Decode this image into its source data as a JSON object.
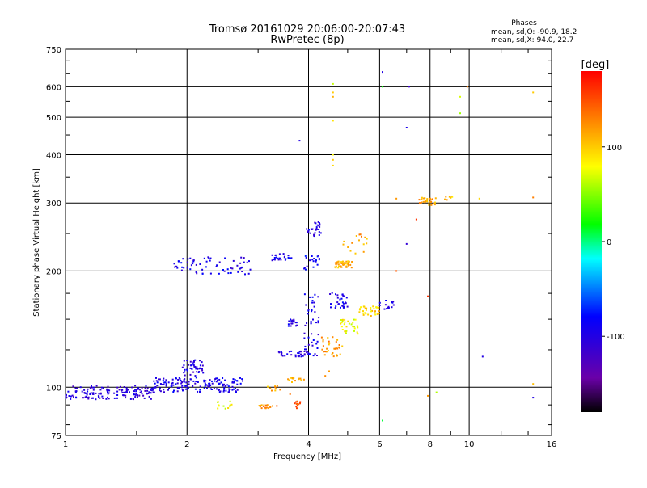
{
  "header": {
    "title_line1": "Tromsø 20161029 20:06:00-20:07:43",
    "title_line2": "RwPretec (8p)",
    "stats_heading": "Phases",
    "stats_o": "mean, sd,O: -90.9, 18.2",
    "stats_x": "mean, sd,X:  94.0, 22.7"
  },
  "colorbar": {
    "unit": "[deg]",
    "ticks": [
      {
        "value": 100,
        "label": "100"
      },
      {
        "value": 0,
        "label": "0"
      },
      {
        "value": -100,
        "label": "-100"
      }
    ],
    "range": [
      -180,
      180
    ],
    "palette": "rainbow"
  },
  "chart_data": {
    "type": "scatter",
    "title": "Tromsø 20161029 20:06:00-20:07:43",
    "subtitle": "RwPretec (8p)",
    "xlabel": "Frequency [MHz]",
    "ylabel": "Stationary phase Virtual Height [km]",
    "xscale": "log",
    "yscale": "log",
    "xlim": [
      1,
      16
    ],
    "ylim": [
      75,
      750
    ],
    "xticks": [
      1,
      2,
      4,
      6,
      8,
      10,
      16
    ],
    "xtick_labels": [
      "1",
      "2",
      "4",
      "6",
      "8",
      "10",
      "16"
    ],
    "yticks": [
      75,
      100,
      200,
      300,
      400,
      500,
      600,
      750
    ],
    "ytick_labels": [
      "75",
      "100",
      "200",
      "300",
      "400",
      "500",
      "600",
      "750"
    ],
    "grid": true,
    "color_encodes": "phase [deg]",
    "clusters": [
      {
        "x_range": [
          1.0,
          1.65
        ],
        "y_range": [
          93,
          101
        ],
        "phase": -105,
        "n": 150
      },
      {
        "x_range": [
          1.65,
          2.75
        ],
        "y_range": [
          97,
          106
        ],
        "phase": -95,
        "n": 160
      },
      {
        "x_range": [
          1.95,
          2.2
        ],
        "y_range": [
          107,
          118
        ],
        "phase": -100,
        "n": 45
      },
      {
        "x_range": [
          1.85,
          2.05
        ],
        "y_range": [
          196,
          218
        ],
        "phase": -95,
        "n": 18
      },
      {
        "x_range": [
          2.05,
          2.9
        ],
        "y_range": [
          196,
          218
        ],
        "phase": -95,
        "n": 50
      },
      {
        "x_range": [
          2.35,
          2.6
        ],
        "y_range": [
          88,
          92
        ],
        "phase": 75,
        "n": 12
      },
      {
        "x_range": [
          3.0,
          3.35
        ],
        "y_range": [
          88,
          90
        ],
        "phase": 125,
        "n": 18
      },
      {
        "x_range": [
          3.1,
          3.4
        ],
        "y_range": [
          98,
          101
        ],
        "phase": 115,
        "n": 10
      },
      {
        "x_range": [
          3.55,
          3.9
        ],
        "y_range": [
          103,
          106
        ],
        "phase": 110,
        "n": 14
      },
      {
        "x_range": [
          3.65,
          3.85
        ],
        "y_range": [
          88,
          92
        ],
        "phase": 145,
        "n": 12
      },
      {
        "x_range": [
          3.25,
          3.65
        ],
        "y_range": [
          213,
          222
        ],
        "phase": -95,
        "n": 25
      },
      {
        "x_range": [
          3.35,
          4.0
        ],
        "y_range": [
          120,
          124
        ],
        "phase": -100,
        "n": 35
      },
      {
        "x_range": [
          3.55,
          3.75
        ],
        "y_range": [
          144,
          150
        ],
        "phase": -100,
        "n": 18
      },
      {
        "x_range": [
          3.9,
          4.25
        ],
        "y_range": [
          120,
          175
        ],
        "phase": -95,
        "n": 45
      },
      {
        "x_range": [
          3.95,
          4.3
        ],
        "y_range": [
          246,
          268
        ],
        "phase": -100,
        "n": 30
      },
      {
        "x_range": [
          3.9,
          4.3
        ],
        "y_range": [
          200,
          222
        ],
        "phase": -90,
        "n": 20
      },
      {
        "x_range": [
          4.3,
          4.85
        ],
        "y_range": [
          120,
          135
        ],
        "phase": 120,
        "n": 35
      },
      {
        "x_range": [
          4.65,
          5.15
        ],
        "y_range": [
          204,
          212
        ],
        "phase": 110,
        "n": 45
      },
      {
        "x_range": [
          4.5,
          5.0
        ],
        "y_range": [
          160,
          176
        ],
        "phase": -95,
        "n": 30
      },
      {
        "x_range": [
          4.8,
          5.3
        ],
        "y_range": [
          136,
          150
        ],
        "phase": 80,
        "n": 30
      },
      {
        "x_range": [
          5.3,
          6.0
        ],
        "y_range": [
          153,
          162
        ],
        "phase": 95,
        "n": 35
      },
      {
        "x_range": [
          5.95,
          6.55
        ],
        "y_range": [
          155,
          168
        ],
        "phase": -95,
        "n": 14
      },
      {
        "x_range": [
          4.8,
          5.6
        ],
        "y_range": [
          220,
          250
        ],
        "phase": 115,
        "n": 16
      },
      {
        "x_range": [
          7.5,
          8.3
        ],
        "y_range": [
          296,
          310
        ],
        "phase": 115,
        "n": 30
      },
      {
        "x_range": [
          8.7,
          9.1
        ],
        "y_range": [
          305,
          312
        ],
        "phase": 105,
        "n": 8
      }
    ],
    "points": [
      {
        "x": 4.6,
        "y": 610,
        "phase": 65
      },
      {
        "x": 4.6,
        "y": 580,
        "phase": 100
      },
      {
        "x": 4.6,
        "y": 565,
        "phase": 110
      },
      {
        "x": 4.6,
        "y": 490,
        "phase": 90
      },
      {
        "x": 4.6,
        "y": 400,
        "phase": 80
      },
      {
        "x": 4.6,
        "y": 388,
        "phase": 100
      },
      {
        "x": 4.6,
        "y": 375,
        "phase": 95
      },
      {
        "x": 3.8,
        "y": 435,
        "phase": -100
      },
      {
        "x": 6.1,
        "y": 655,
        "phase": -100
      },
      {
        "x": 6.1,
        "y": 600,
        "phase": 20
      },
      {
        "x": 7.1,
        "y": 600,
        "phase": -115
      },
      {
        "x": 7.0,
        "y": 470,
        "phase": -95
      },
      {
        "x": 9.5,
        "y": 565,
        "phase": 70
      },
      {
        "x": 9.5,
        "y": 512,
        "phase": 55
      },
      {
        "x": 9.9,
        "y": 600,
        "phase": 130
      },
      {
        "x": 14.4,
        "y": 580,
        "phase": 100
      },
      {
        "x": 14.4,
        "y": 310,
        "phase": 130
      },
      {
        "x": 10.6,
        "y": 308,
        "phase": 95
      },
      {
        "x": 6.6,
        "y": 308,
        "phase": 120
      },
      {
        "x": 7.4,
        "y": 272,
        "phase": 160
      },
      {
        "x": 7.0,
        "y": 235,
        "phase": -110
      },
      {
        "x": 6.6,
        "y": 200,
        "phase": 145
      },
      {
        "x": 7.9,
        "y": 172,
        "phase": 160
      },
      {
        "x": 7.9,
        "y": 95,
        "phase": 120
      },
      {
        "x": 10.8,
        "y": 120,
        "phase": -100
      },
      {
        "x": 14.4,
        "y": 102,
        "phase": 105
      },
      {
        "x": 14.4,
        "y": 94,
        "phase": -100
      },
      {
        "x": 8.3,
        "y": 97,
        "phase": 60
      },
      {
        "x": 6.1,
        "y": 82,
        "phase": 10
      },
      {
        "x": 4.5,
        "y": 110,
        "phase": 120
      },
      {
        "x": 4.4,
        "y": 107,
        "phase": 125
      },
      {
        "x": 3.6,
        "y": 96,
        "phase": 135
      }
    ]
  }
}
